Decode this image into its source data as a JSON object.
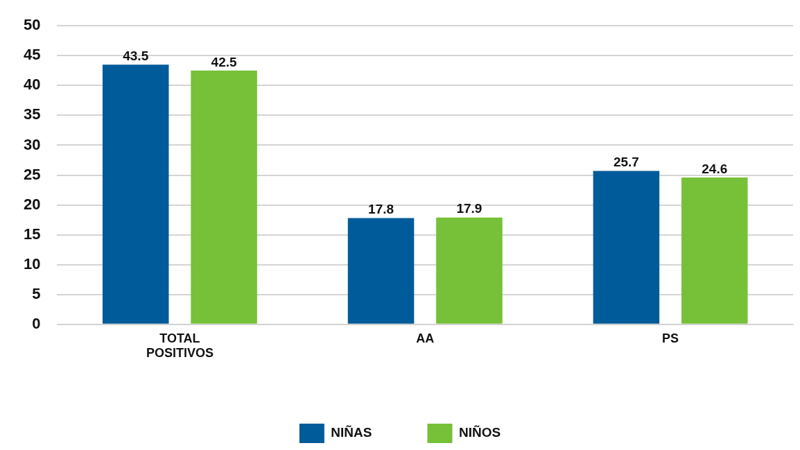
{
  "chart_data": {
    "type": "bar",
    "categories": [
      "TOTAL POSITIVOS",
      "AA",
      "PS"
    ],
    "series": [
      {
        "name": "NIÑAS",
        "color": "#005b9a",
        "values": [
          43.5,
          17.8,
          25.7
        ]
      },
      {
        "name": "NIÑOS",
        "color": "#76c137",
        "values": [
          42.5,
          17.9,
          24.6
        ]
      }
    ],
    "ylim": [
      0,
      50
    ],
    "yticks": [
      0,
      5,
      10,
      15,
      20,
      25,
      30,
      35,
      40,
      45,
      50
    ],
    "grid": "y",
    "legend": "bottom",
    "data_labels": true
  }
}
